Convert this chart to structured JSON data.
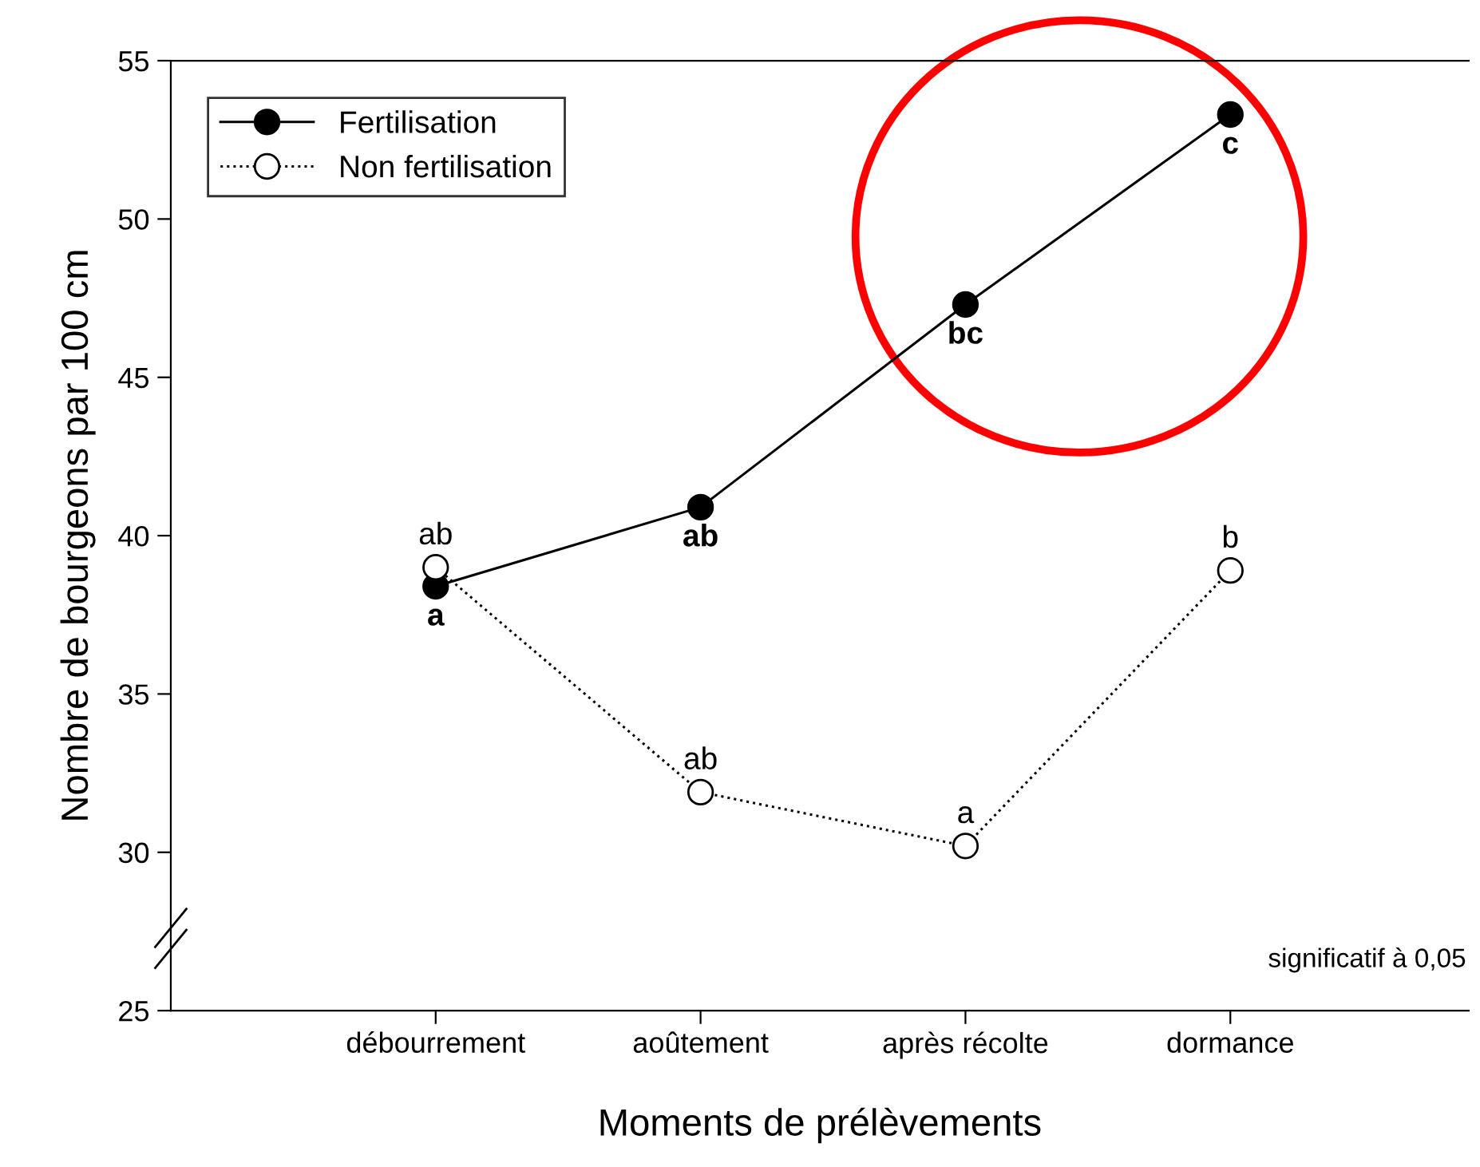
{
  "chart_data": {
    "type": "line",
    "xlabel": "Moments de prélèvements",
    "ylabel": "Nombre de bourgeons par 100 cm",
    "categories": [
      "débourrement",
      "aoûtement",
      "après récolte",
      "dormance"
    ],
    "series": [
      {
        "name": "Fertilisation",
        "color": "#000000",
        "values": [
          38.4,
          40.9,
          47.3,
          53.3
        ],
        "line_style": "solid",
        "marker": "circle"
      },
      {
        "name": "Non fertilisation",
        "color": "#000000",
        "values": [
          39.0,
          31.9,
          30.2,
          38.9
        ],
        "line_style": "dotted",
        "marker": "circle"
      }
    ],
    "ylim": [
      25,
      55
    ],
    "yticks": [
      25,
      30,
      35,
      40,
      45,
      50,
      55
    ],
    "grid": false,
    "legend": "top left",
    "annotations": [
      {
        "text": "a",
        "x": "débourrement",
        "y": 38.4
      },
      {
        "text": "ab",
        "x": "aoûtement",
        "y": 40.9
      },
      {
        "text": "bc",
        "x": "après récolte",
        "y": 47.3
      },
      {
        "text": "c",
        "x": "dormance",
        "y": 53.3
      },
      {
        "text": "ab",
        "x": "débourrement",
        "y": 39.0
      },
      {
        "text": "ab",
        "x": "aoûtement",
        "y": 31.9
      },
      {
        "text": "a",
        "x": "après récolte",
        "y": 30.2
      },
      {
        "text": "b",
        "x": "dormance",
        "y": 38.9
      },
      "significatif à 0,05"
    ]
  }
}
